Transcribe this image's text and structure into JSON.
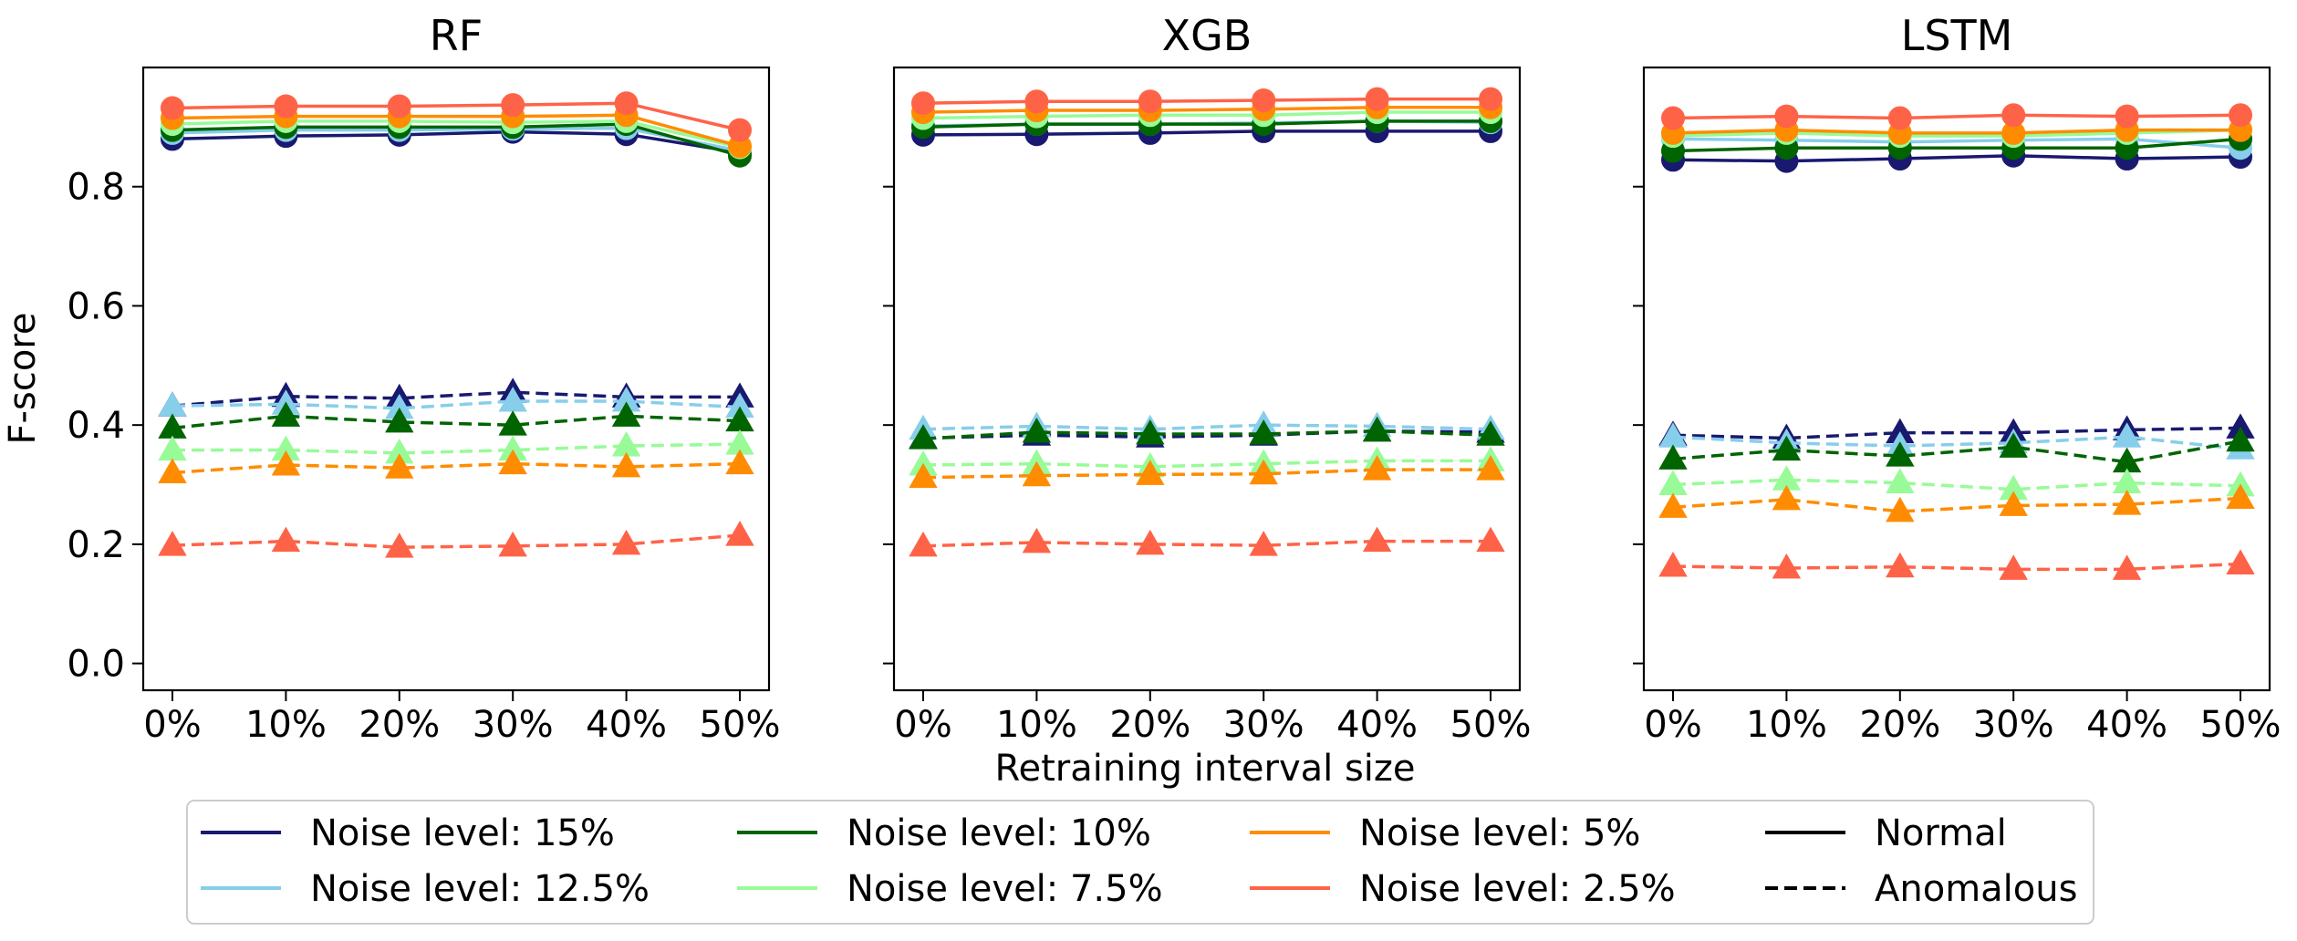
{
  "chart_data": {
    "type": "line",
    "xlabel": "Retraining interval size",
    "ylabel": "F-score",
    "x": [
      "0%",
      "10%",
      "20%",
      "30%",
      "40%",
      "50%"
    ],
    "ylim": [
      -0.045,
      1.0
    ],
    "yticks": [
      0.0,
      0.2,
      0.4,
      0.6,
      0.8
    ],
    "ytick_labels": [
      "0.0",
      "0.2",
      "0.4",
      "0.6",
      "0.8"
    ],
    "grid": false,
    "sharey": true,
    "legend": {
      "placement": "bottom-center",
      "entries": [
        {
          "label": "Noise level: 15%",
          "color": "#191970",
          "style": "solid"
        },
        {
          "label": "Noise level: 12.5%",
          "color": "#87ceeb",
          "style": "solid"
        },
        {
          "label": "Noise level: 10%",
          "color": "#006400",
          "style": "solid"
        },
        {
          "label": "Noise level: 7.5%",
          "color": "#98fb98",
          "style": "solid"
        },
        {
          "label": "Noise level: 5%",
          "color": "#ff8c00",
          "style": "solid"
        },
        {
          "label": "Noise level: 2.5%",
          "color": "#ff6347",
          "style": "solid"
        },
        {
          "label": "Normal",
          "color": "#000000",
          "style": "solid"
        },
        {
          "label": "Anomalous",
          "color": "#000000",
          "style": "dashed"
        }
      ]
    },
    "colors": {
      "15%": "#191970",
      "12.5%": "#87ceeb",
      "10%": "#006400",
      "7.5%": "#98fb98",
      "5%": "#ff8c00",
      "2.5%": "#ff6347"
    },
    "noise_order": [
      "15%",
      "12.5%",
      "10%",
      "7.5%",
      "5%",
      "2.5%"
    ],
    "panels": [
      {
        "title": "RF",
        "normal": {
          "15%": [
            0.88,
            0.885,
            0.887,
            0.892,
            0.888,
            0.857
          ],
          "12.5%": [
            0.89,
            0.895,
            0.895,
            0.897,
            0.898,
            0.86
          ],
          "10%": [
            0.895,
            0.9,
            0.9,
            0.9,
            0.905,
            0.852
          ],
          "7.5%": [
            0.905,
            0.91,
            0.91,
            0.908,
            0.91,
            0.866
          ],
          "5%": [
            0.915,
            0.918,
            0.918,
            0.918,
            0.92,
            0.868
          ],
          "2.5%": [
            0.932,
            0.935,
            0.935,
            0.937,
            0.94,
            0.895
          ]
        },
        "anomalous": {
          "15%": [
            0.432,
            0.448,
            0.445,
            0.455,
            0.447,
            0.447
          ],
          "12.5%": [
            0.432,
            0.435,
            0.428,
            0.44,
            0.44,
            0.43
          ],
          "10%": [
            0.395,
            0.415,
            0.405,
            0.4,
            0.415,
            0.407
          ],
          "7.5%": [
            0.358,
            0.358,
            0.353,
            0.358,
            0.365,
            0.368
          ],
          "5%": [
            0.32,
            0.333,
            0.328,
            0.335,
            0.33,
            0.335
          ],
          "2.5%": [
            0.198,
            0.205,
            0.195,
            0.197,
            0.2,
            0.215
          ]
        }
      },
      {
        "title": "XGB",
        "normal": {
          "15%": [
            0.887,
            0.888,
            0.89,
            0.893,
            0.893,
            0.893
          ],
          "12.5%": [
            0.902,
            0.905,
            0.905,
            0.907,
            0.91,
            0.908
          ],
          "10%": [
            0.9,
            0.905,
            0.905,
            0.905,
            0.91,
            0.91
          ],
          "7.5%": [
            0.915,
            0.918,
            0.92,
            0.92,
            0.925,
            0.925
          ],
          "5%": [
            0.925,
            0.928,
            0.928,
            0.93,
            0.933,
            0.933
          ],
          "2.5%": [
            0.94,
            0.943,
            0.943,
            0.945,
            0.947,
            0.947
          ]
        },
        "anomalous": {
          "15%": [
            0.378,
            0.383,
            0.38,
            0.383,
            0.39,
            0.388
          ],
          "12.5%": [
            0.393,
            0.398,
            0.393,
            0.4,
            0.398,
            0.393
          ],
          "10%": [
            0.377,
            0.388,
            0.385,
            0.385,
            0.39,
            0.383
          ],
          "7.5%": [
            0.333,
            0.335,
            0.33,
            0.335,
            0.34,
            0.34
          ],
          "5%": [
            0.312,
            0.315,
            0.317,
            0.318,
            0.325,
            0.325
          ],
          "2.5%": [
            0.197,
            0.203,
            0.2,
            0.198,
            0.205,
            0.205
          ]
        }
      },
      {
        "title": "LSTM",
        "normal": {
          "15%": [
            0.845,
            0.843,
            0.847,
            0.852,
            0.847,
            0.85
          ],
          "12.5%": [
            0.88,
            0.878,
            0.875,
            0.878,
            0.88,
            0.865
          ],
          "10%": [
            0.86,
            0.865,
            0.865,
            0.865,
            0.865,
            0.88
          ],
          "7.5%": [
            0.885,
            0.89,
            0.885,
            0.885,
            0.89,
            0.895
          ],
          "5%": [
            0.89,
            0.895,
            0.89,
            0.89,
            0.895,
            0.895
          ],
          "2.5%": [
            0.915,
            0.918,
            0.915,
            0.92,
            0.918,
            0.92
          ]
        },
        "anomalous": {
          "15%": [
            0.383,
            0.378,
            0.387,
            0.387,
            0.392,
            0.395
          ],
          "12.5%": [
            0.38,
            0.37,
            0.365,
            0.37,
            0.38,
            0.36
          ],
          "10%": [
            0.343,
            0.358,
            0.348,
            0.363,
            0.338,
            0.373
          ],
          "7.5%": [
            0.3,
            0.308,
            0.303,
            0.292,
            0.303,
            0.298
          ],
          "5%": [
            0.262,
            0.275,
            0.255,
            0.265,
            0.267,
            0.277
          ],
          "2.5%": [
            0.163,
            0.16,
            0.162,
            0.158,
            0.158,
            0.167
          ]
        }
      }
    ]
  }
}
